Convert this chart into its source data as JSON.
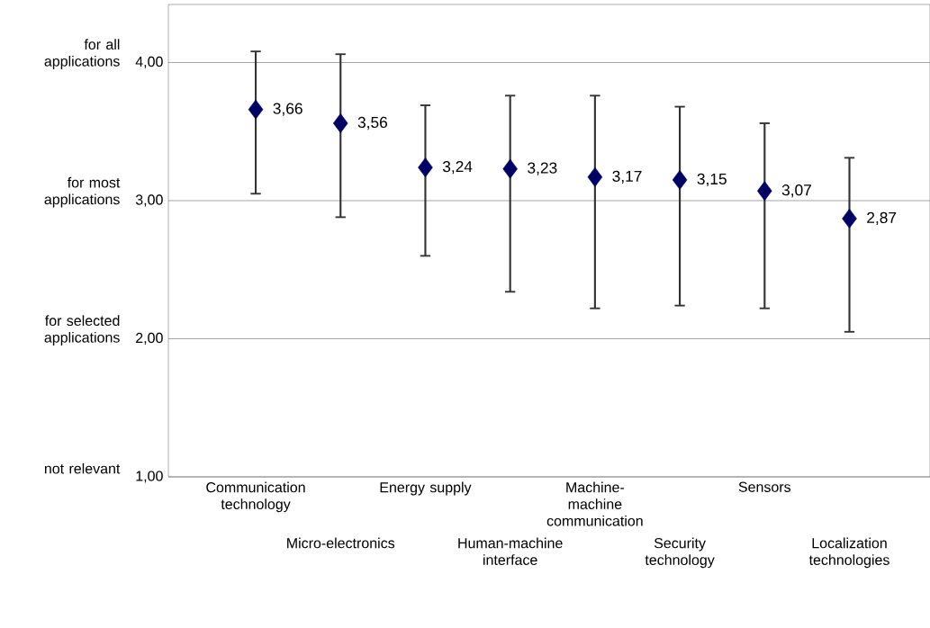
{
  "chart_data": {
    "type": "scatter",
    "categories": [
      "Communication technology",
      "Micro-electronics",
      "Energy supply",
      "Human-machine interface",
      "Machine-machine communication",
      "Security technology",
      "Sensors",
      "Localization technologies"
    ],
    "values": [
      3.66,
      3.56,
      3.24,
      3.23,
      3.17,
      3.15,
      3.07,
      2.87
    ],
    "value_labels": [
      "3,66",
      "3,56",
      "3,24",
      "3,23",
      "3,17",
      "3,15",
      "3,07",
      "2,87"
    ],
    "errors": [
      [
        3.05,
        4.08
      ],
      [
        2.88,
        4.06
      ],
      [
        2.6,
        3.69
      ],
      [
        2.34,
        3.76
      ],
      [
        2.22,
        3.76
      ],
      [
        2.24,
        3.68
      ],
      [
        2.22,
        3.56
      ],
      [
        2.05,
        3.31
      ]
    ],
    "color": "#000066",
    "marker": "diamond",
    "ylim": [
      1,
      4.42
    ],
    "yticks": [
      {
        "value": 1,
        "label": "1,00"
      },
      {
        "value": 2,
        "label": "2,00"
      },
      {
        "value": 3,
        "label": "3,00"
      },
      {
        "value": 4,
        "label": "4,00"
      }
    ],
    "annotations": [
      "not relevant",
      "for selected applications",
      "for most applications",
      "for all applications"
    ],
    "grid": "y"
  }
}
